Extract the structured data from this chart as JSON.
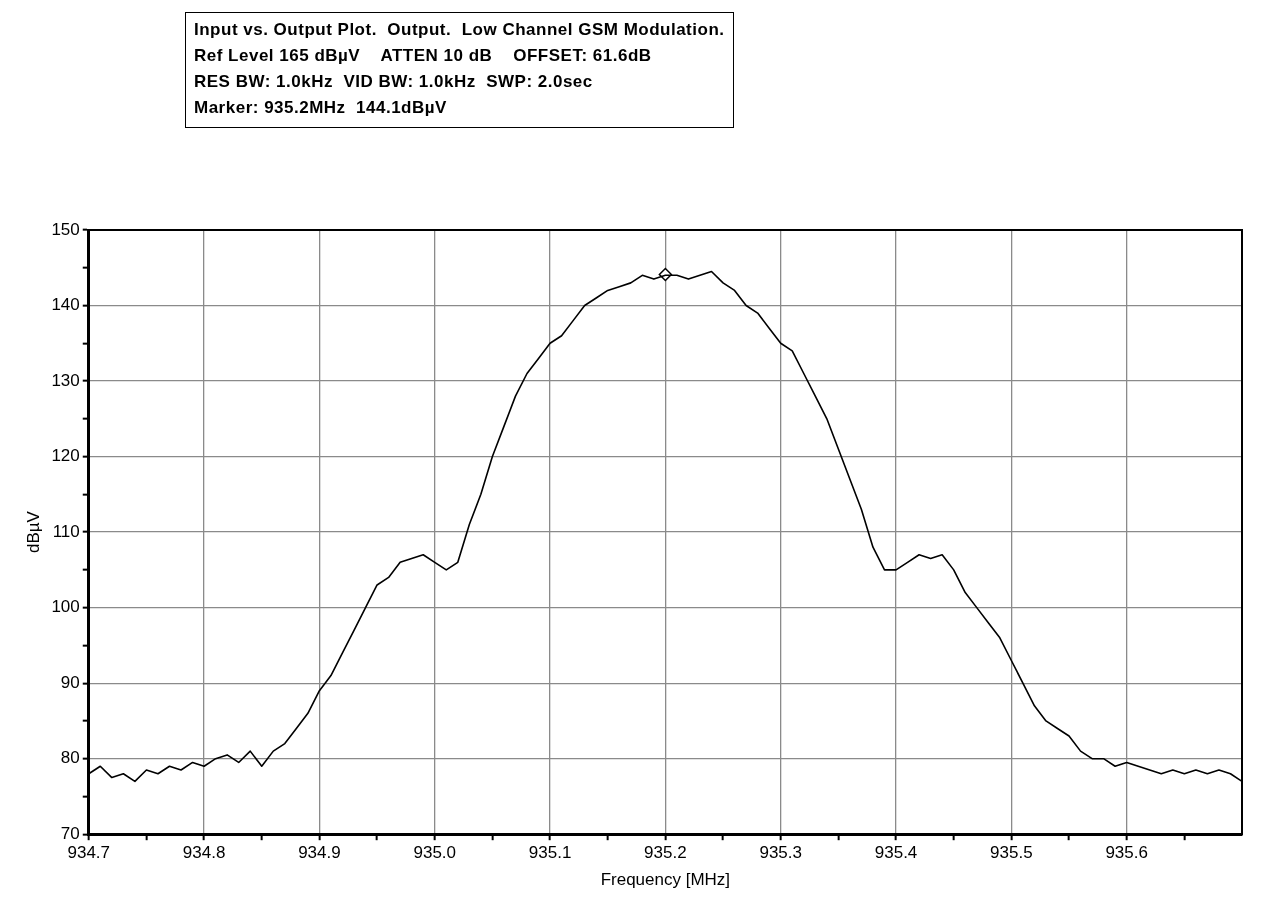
{
  "chart_data": {
    "type": "line",
    "title": "Input vs. Output Plot.  Output.  Low Channel GSM Modulation.",
    "subtitle": "Ref Level 165 dBµV    ATTEN 10 dB    OFFSET: 61.6dB",
    "annotations": [
      "RES BW: 1.0kHz  VID BW: 1.0kHz  SWP: 2.0sec",
      "Marker: 935.2MHz  144.1dBµV"
    ],
    "xlabel": "Frequency [MHz]",
    "ylabel": "dBµV",
    "x": [
      934.7,
      934.71,
      934.72,
      934.73,
      934.74,
      934.75,
      934.76,
      934.77,
      934.78,
      934.79,
      934.8,
      934.81,
      934.82,
      934.83,
      934.84,
      934.85,
      934.86,
      934.87,
      934.88,
      934.89,
      934.9,
      934.91,
      934.92,
      934.93,
      934.94,
      934.95,
      934.96,
      934.97,
      934.98,
      934.99,
      935.0,
      935.01,
      935.02,
      935.03,
      935.04,
      935.05,
      935.06,
      935.07,
      935.08,
      935.09,
      935.1,
      935.11,
      935.12,
      935.13,
      935.14,
      935.15,
      935.16,
      935.17,
      935.18,
      935.19,
      935.2,
      935.21,
      935.22,
      935.23,
      935.24,
      935.25,
      935.26,
      935.27,
      935.28,
      935.29,
      935.3,
      935.31,
      935.32,
      935.33,
      935.34,
      935.35,
      935.36,
      935.37,
      935.38,
      935.39,
      935.4,
      935.41,
      935.42,
      935.43,
      935.44,
      935.45,
      935.46,
      935.47,
      935.48,
      935.49,
      935.5,
      935.51,
      935.52,
      935.53,
      935.54,
      935.55,
      935.56,
      935.57,
      935.58,
      935.59,
      935.6,
      935.61,
      935.62,
      935.63,
      935.64,
      935.65,
      935.66,
      935.67,
      935.68,
      935.69,
      935.7
    ],
    "series": [
      {
        "color": "#000000",
        "values": [
          78,
          79,
          77.5,
          78,
          77,
          78.5,
          78,
          79,
          78.5,
          79.5,
          79,
          80,
          80.5,
          79.5,
          81,
          79,
          81,
          82,
          84,
          86,
          89,
          91,
          94,
          97,
          100,
          103,
          104,
          106,
          106.5,
          107,
          106,
          105,
          106,
          111,
          115,
          120,
          124,
          128,
          131,
          133,
          135,
          136,
          138,
          140,
          141,
          142,
          142.5,
          143,
          144,
          143.5,
          144,
          144,
          143.5,
          144,
          144.5,
          143,
          142,
          140,
          139,
          137,
          135,
          134,
          131,
          128,
          125,
          121,
          117,
          113,
          108,
          105,
          105,
          106,
          107,
          106.5,
          107,
          105,
          102,
          100,
          98,
          96,
          93,
          90,
          87,
          85,
          84,
          83,
          81,
          80,
          80,
          79,
          79.5,
          79,
          78.5,
          78,
          78.5,
          78,
          78.5,
          78,
          78.5,
          78,
          77
        ]
      },
      {
        "type": "scatter",
        "color": "#000000",
        "marker": "diamond",
        "x": [
          935.2
        ],
        "values": [
          144.1
        ]
      }
    ],
    "xlim": [
      934.7,
      935.7
    ],
    "xticks": [
      934.7,
      {
        "value": 934.75,
        "label": null
      },
      934.8,
      {
        "value": 934.85,
        "label": null
      },
      934.9,
      {
        "value": 934.95,
        "label": null
      },
      {
        "value": 935,
        "label": "935.0"
      },
      {
        "value": 935.05,
        "label": null
      },
      935.1,
      {
        "value": 935.15,
        "label": null
      },
      935.2,
      {
        "value": 935.25,
        "label": null
      },
      935.3,
      {
        "value": 935.35,
        "label": null
      },
      935.4,
      {
        "value": 935.45,
        "label": null
      },
      935.5,
      {
        "value": 935.55,
        "label": null
      },
      935.6,
      {
        "value": 935.65,
        "label": null
      }
    ],
    "ylim": [
      70,
      150
    ],
    "yticks": [
      70,
      {
        "value": 75,
        "label": null
      },
      80,
      {
        "value": 85,
        "label": null
      },
      90,
      {
        "value": 95,
        "label": null
      },
      100,
      {
        "value": 105,
        "label": null
      },
      110,
      {
        "value": 115,
        "label": null
      },
      120,
      {
        "value": 125,
        "label": null
      },
      130,
      {
        "value": 135,
        "label": null
      },
      140,
      {
        "value": 145,
        "label": null
      },
      150
    ],
    "grid": true,
    "legend": false,
    "marker": "none",
    "line_style": "solid"
  }
}
